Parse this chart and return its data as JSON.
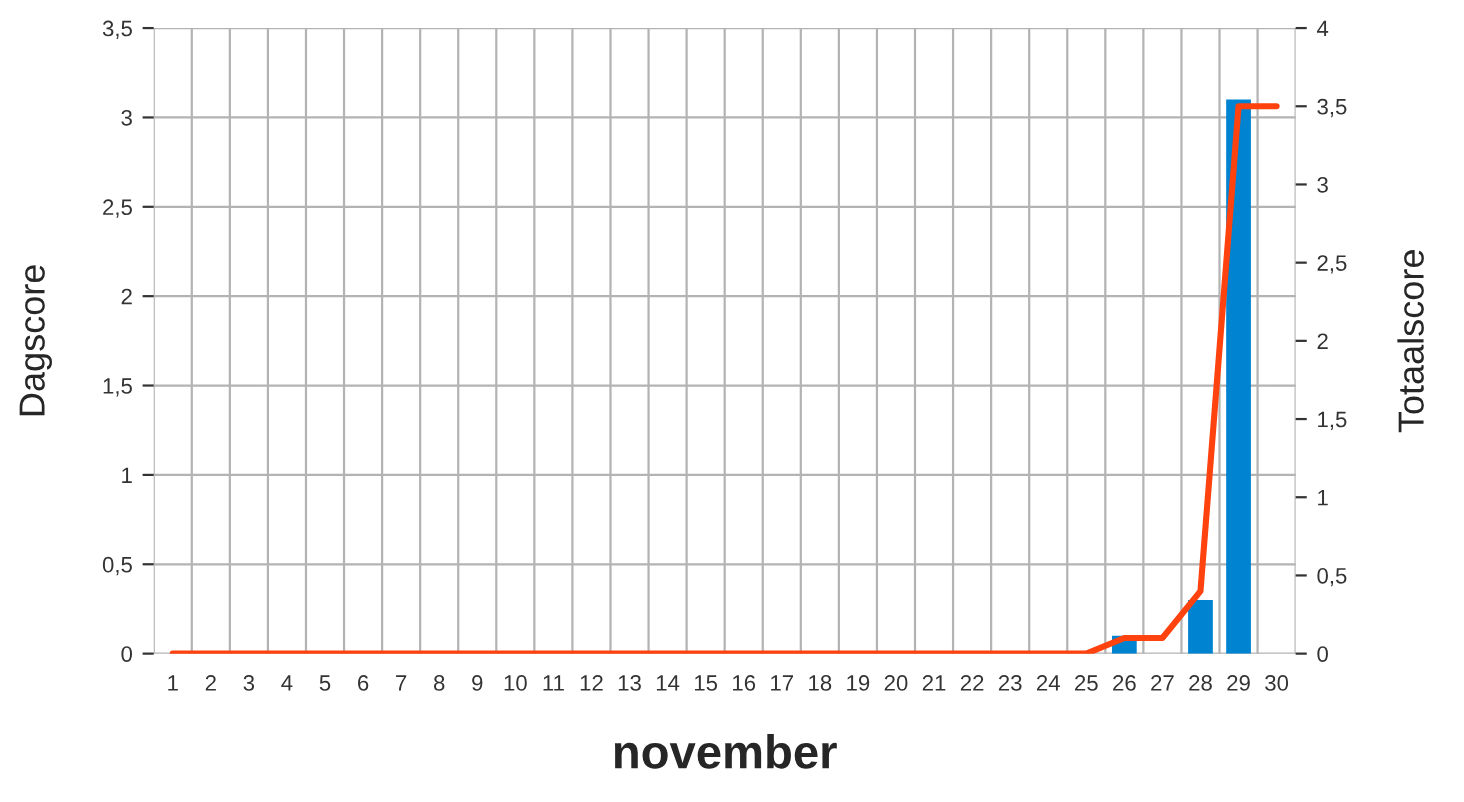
{
  "chart_data": {
    "type": "bar",
    "xlabel": "november",
    "ylabel": "Dagscore",
    "y2label": "Totaalscore",
    "categories": [
      "1",
      "2",
      "3",
      "4",
      "5",
      "6",
      "7",
      "8",
      "9",
      "10",
      "11",
      "12",
      "13",
      "14",
      "15",
      "16",
      "17",
      "18",
      "19",
      "20",
      "21",
      "22",
      "23",
      "24",
      "25",
      "26",
      "27",
      "28",
      "29",
      "30"
    ],
    "series": [
      {
        "color": "#0083d1",
        "values": [
          0,
          0,
          0,
          0,
          0,
          0,
          0,
          0,
          0,
          0,
          0,
          0,
          0,
          0,
          0,
          0,
          0,
          0,
          0,
          0,
          0,
          0,
          0,
          0,
          0,
          0.1,
          0,
          0.3,
          3.1,
          0
        ]
      },
      {
        "type": "line",
        "axis": "y2",
        "color": "#ff420e",
        "values": [
          0,
          0,
          0,
          0,
          0,
          0,
          0,
          0,
          0,
          0,
          0,
          0,
          0,
          0,
          0,
          0,
          0,
          0,
          0,
          0,
          0,
          0,
          0,
          0,
          0,
          0.1,
          0.1,
          0.4,
          3.5,
          3.5
        ]
      }
    ],
    "ylim": [
      0,
      3.5
    ],
    "yticks": [
      0,
      {
        "value": 0.5,
        "label": "0,5"
      },
      1,
      {
        "value": 1.5,
        "label": "1,5"
      },
      2,
      {
        "value": 2.5,
        "label": "2,5"
      },
      3,
      {
        "value": 3.5,
        "label": "3,5"
      }
    ],
    "y2lim": [
      0,
      4
    ],
    "y2ticks": [
      0,
      {
        "value": 0.5,
        "label": "0,5"
      },
      1,
      {
        "value": 1.5,
        "label": "1,5"
      },
      2,
      {
        "value": 2.5,
        "label": "2,5"
      },
      3,
      {
        "value": 3.5,
        "label": "3,5"
      },
      4
    ],
    "grid": true,
    "marker": "none",
    "line_style": "solid"
  }
}
